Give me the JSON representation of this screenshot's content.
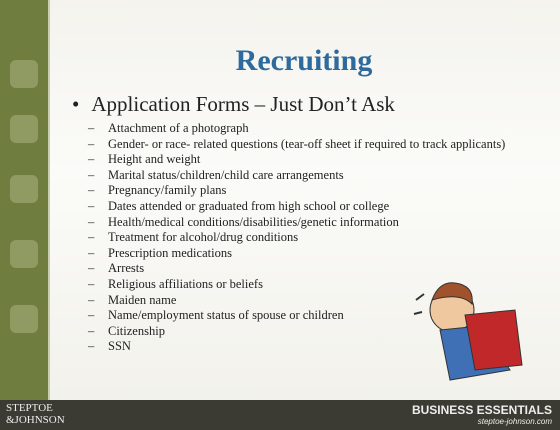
{
  "slide": {
    "title": "Recruiting",
    "bullet": "Application Forms – Just Don’t Ask",
    "items": [
      "Attachment of a photograph",
      "Gender- or race- related questions (tear-off sheet if required to track applicants)",
      "Height and weight",
      "Marital status/children/child care arrangements",
      "Pregnancy/family plans",
      "Dates attended or graduated from high school or college",
      "Health/medical conditions/disabilities/genetic information",
      "Treatment for alcohol/drug conditions",
      "Prescription medications",
      "Arrests",
      "Religious affiliations or beliefs",
      "Maiden name",
      "Name/employment status of spouse or children",
      "Citizenship",
      "SSN"
    ]
  },
  "footer": {
    "logo_line1": "STEPTOE",
    "logo_line2": "&JOHNSON",
    "brand": "BUSINESS ESSENTIALS",
    "url": "steptoe-johnson.com"
  }
}
